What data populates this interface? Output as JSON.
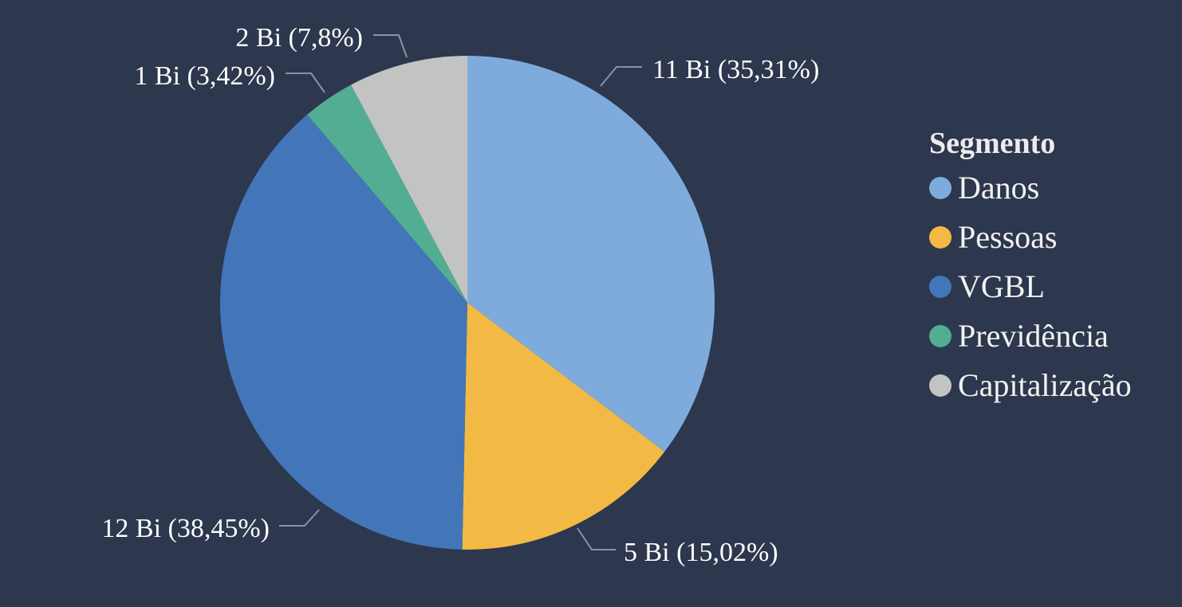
{
  "chart_data": {
    "type": "pie",
    "legend_title": "Segmento",
    "legend_position": "right",
    "slices": [
      {
        "name": "Danos",
        "value": 11,
        "percent": 35.31,
        "label": "11 Bi (35,31%)",
        "color": "#7eabdb"
      },
      {
        "name": "Pessoas",
        "value": 5,
        "percent": 15.02,
        "label": "5 Bi (15,02%)",
        "color": "#f2ba44"
      },
      {
        "name": "VGBL",
        "value": 12,
        "percent": 38.45,
        "label": "12 Bi (38,45%)",
        "color": "#4276b9"
      },
      {
        "name": "Previdência",
        "value": 1,
        "percent": 3.42,
        "label": "1 Bi (3,42%)",
        "color": "#52ad93"
      },
      {
        "name": "Capitalização",
        "value": 2,
        "percent": 7.8,
        "label": "2 Bi (7,8%)",
        "color": "#c2c4c3"
      }
    ]
  }
}
